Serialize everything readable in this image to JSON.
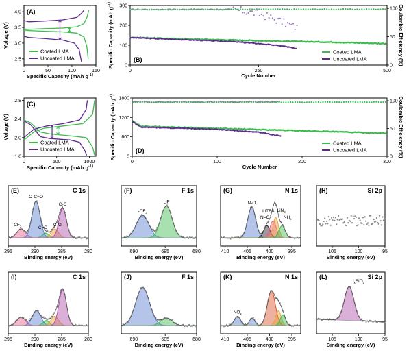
{
  "colors": {
    "coated": "#3dbb4f",
    "uncoated": "#5b2a8c",
    "uncoated_ce": "#9b7bc0",
    "coated_ce": "#8fd49a"
  },
  "chart_data": [
    {
      "id": "A",
      "panel_label": "(A)",
      "type": "line",
      "xlabel": "Specific Capacity (mAh g-1)",
      "ylabel": "Voltage (V)",
      "xlim": [
        0,
        150
      ],
      "ylim": [
        2.3,
        4.2
      ],
      "x_ticks": [
        "0",
        "50",
        "100",
        "150"
      ],
      "y_ticks": [
        "2.5",
        "3.0",
        "3.5",
        "4.0"
      ],
      "legend": [
        "Coated LMA",
        "Uncoated LMA"
      ],
      "series": [
        {
          "name": "Coated LMA",
          "charge": [
            [
              0,
              3.45
            ],
            [
              10,
              3.44
            ],
            [
              40,
              3.46
            ],
            [
              80,
              3.48
            ],
            [
              110,
              3.52
            ],
            [
              125,
              3.62
            ],
            [
              132,
              3.85
            ],
            [
              135,
              4.05
            ]
          ],
          "discharge": [
            [
              0,
              3.42
            ],
            [
              10,
              3.4
            ],
            [
              40,
              3.38
            ],
            [
              80,
              3.36
            ],
            [
              110,
              3.32
            ],
            [
              125,
              3.2
            ],
            [
              131,
              2.9
            ],
            [
              134,
              2.5
            ]
          ]
        },
        {
          "name": "Uncoated LMA",
          "charge": [
            [
              0,
              3.72
            ],
            [
              10,
              3.68
            ],
            [
              40,
              3.7
            ],
            [
              80,
              3.74
            ],
            [
              110,
              3.82
            ],
            [
              120,
              3.95
            ],
            [
              125,
              4.05
            ]
          ],
          "discharge": [
            [
              0,
              3.22
            ],
            [
              10,
              3.18
            ],
            [
              40,
              3.15
            ],
            [
              80,
              3.1
            ],
            [
              105,
              3.0
            ],
            [
              115,
              2.8
            ],
            [
              120,
              2.4
            ]
          ]
        }
      ]
    },
    {
      "id": "B",
      "panel_label": "(B)",
      "type": "scatter",
      "xlabel": "Cycle Number",
      "ylabel": "Specific Capacity (mAh g-1)",
      "y2label": "Coulombic Efficiency (%)",
      "xlim": [
        0,
        500
      ],
      "ylim": [
        0,
        300
      ],
      "y2lim": [
        0,
        105
      ],
      "x_ticks": [
        "0",
        "250",
        "500"
      ],
      "y_ticks": [
        "0",
        "100",
        "200",
        "300"
      ],
      "y2_ticks": [
        "0",
        "50",
        "100"
      ],
      "legend": [
        "Coated LMA",
        "Uncoated LMA"
      ],
      "series": [
        {
          "name": "Coated LMA",
          "capacity": [
            [
              1,
              140
            ],
            [
              100,
              132
            ],
            [
              200,
              126
            ],
            [
              300,
              120
            ],
            [
              400,
              115
            ],
            [
              500,
              108
            ]
          ],
          "ce": [
            [
              1,
              98
            ],
            [
              500,
              98.5
            ]
          ]
        },
        {
          "name": "Uncoated LMA",
          "capacity": [
            [
              1,
              138
            ],
            [
              100,
              128
            ],
            [
              200,
              118
            ],
            [
              250,
              108
            ],
            [
              300,
              95
            ],
            [
              325,
              82
            ]
          ],
          "ce": [
            [
              1,
              98
            ],
            [
              200,
              98
            ],
            [
              230,
              94
            ],
            [
              260,
              88
            ],
            [
              290,
              78
            ],
            [
              325,
              66
            ]
          ]
        }
      ]
    },
    {
      "id": "C",
      "panel_label": "(C)",
      "type": "line",
      "xlabel": "Specific Capacity (mAh g-1)",
      "ylabel": "Voltage (V)",
      "xlim": [
        0,
        1100
      ],
      "ylim": [
        1.6,
        2.85
      ],
      "x_ticks": [
        "0",
        "500",
        "1000"
      ],
      "y_ticks": [
        "1.6",
        "2.0",
        "2.4",
        "2.8"
      ],
      "legend": [
        "Coated LMA",
        "Uncoated LMA"
      ],
      "series": [
        {
          "name": "Coated LMA",
          "charge": [
            [
              0,
              1.95
            ],
            [
              150,
              2.12
            ],
            [
              300,
              2.2
            ],
            [
              600,
              2.25
            ],
            [
              900,
              2.3
            ],
            [
              1050,
              2.5
            ],
            [
              1080,
              2.8
            ]
          ],
          "discharge": [
            [
              0,
              2.38
            ],
            [
              100,
              2.32
            ],
            [
              250,
              2.12
            ],
            [
              400,
              2.08
            ],
            [
              700,
              2.04
            ],
            [
              950,
              2.0
            ],
            [
              1050,
              1.8
            ],
            [
              1080,
              1.62
            ]
          ]
        },
        {
          "name": "Uncoated LMA",
          "charge": [
            [
              0,
              2.0
            ],
            [
              150,
              2.18
            ],
            [
              350,
              2.25
            ],
            [
              600,
              2.3
            ],
            [
              850,
              2.38
            ],
            [
              950,
              2.6
            ],
            [
              970,
              2.8
            ]
          ],
          "discharge": [
            [
              0,
              2.36
            ],
            [
              100,
              2.28
            ],
            [
              250,
              2.02
            ],
            [
              400,
              1.98
            ],
            [
              700,
              1.95
            ],
            [
              850,
              1.9
            ],
            [
              930,
              1.72
            ],
            [
              960,
              1.62
            ]
          ]
        }
      ]
    },
    {
      "id": "D",
      "panel_label": "(D)",
      "type": "scatter",
      "xlabel": "Cycle Number",
      "ylabel": "Specific Capacity (mAh g-1)",
      "y2label": "Coulombic Efficiency (%)",
      "xlim": [
        0,
        300
      ],
      "ylim": [
        0,
        1800
      ],
      "y2lim": [
        0,
        105
      ],
      "x_ticks": [
        "0",
        "100",
        "200",
        "300"
      ],
      "y_ticks": [
        "0",
        "600",
        "1200",
        "1800"
      ],
      "y2_ticks": [
        "0",
        "50",
        "100"
      ],
      "legend": [
        "Coated LMA",
        "Uncoated LMA"
      ],
      "series": [
        {
          "name": "Coated LMA",
          "capacity": [
            [
              1,
              1080
            ],
            [
              10,
              930
            ],
            [
              50,
              900
            ],
            [
              100,
              860
            ],
            [
              200,
              790
            ],
            [
              300,
              710
            ]
          ],
          "ce": [
            [
              1,
              97
            ],
            [
              300,
              97.5
            ]
          ]
        },
        {
          "name": "Uncoated LMA",
          "capacity": [
            [
              1,
              1060
            ],
            [
              10,
              900
            ],
            [
              50,
              870
            ],
            [
              100,
              830
            ],
            [
              150,
              740
            ],
            [
              175,
              620
            ]
          ],
          "ce": [
            [
              1,
              98
            ],
            [
              175,
              98
            ]
          ]
        }
      ]
    },
    {
      "id": "E",
      "panel_label": "(E)",
      "type": "xps",
      "element": "C 1s",
      "xlabel": "Binding energy (eV)",
      "xlim": [
        295,
        280
      ],
      "x_ticks": [
        "295",
        "290",
        "285",
        "280"
      ],
      "peaks": [
        {
          "label": "-CF3",
          "center": 292.6,
          "height": 0.22,
          "width": 0.8,
          "color": "#e8608a"
        },
        {
          "label": "C=O",
          "center": 288.0,
          "height": 0.12,
          "width": 0.6,
          "color": "#3dbb4f"
        },
        {
          "label": "C-O",
          "center": 286.3,
          "height": 0.22,
          "width": 0.7,
          "color": "#e6a23c"
        },
        {
          "label": "O-C=O",
          "center": 289.8,
          "height": 0.9,
          "width": 0.75,
          "color": "#5b7fd0"
        },
        {
          "label": "C-C",
          "center": 284.8,
          "height": 0.72,
          "width": 0.7,
          "color": "#b04fa8"
        }
      ]
    },
    {
      "id": "F",
      "panel_label": "(F)",
      "type": "xps",
      "element": "F 1s",
      "xlabel": "Binding energy (eV)",
      "xlim": [
        692,
        680
      ],
      "x_ticks": [
        "690",
        "685",
        "680"
      ],
      "peaks": [
        {
          "label": "-CF3",
          "center": 688.6,
          "height": 0.55,
          "width": 1.0,
          "color": "#5b7fd0"
        },
        {
          "label": "LiF",
          "center": 684.8,
          "height": 0.78,
          "width": 0.9,
          "color": "#3dbb4f"
        }
      ]
    },
    {
      "id": "G",
      "panel_label": "(G)",
      "type": "xps",
      "element": "N 1s",
      "xlabel": "Binding energy (eV)",
      "xlim": [
        411,
        393
      ],
      "x_ticks": [
        "410",
        "405",
        "400",
        "395"
      ],
      "peaks": [
        {
          "label": "N-O",
          "center": 404.0,
          "height": 0.75,
          "width": 0.9,
          "color": "#5b7fd0"
        },
        {
          "label": "N=C",
          "center": 400.6,
          "height": 0.3,
          "width": 0.7,
          "color": "#222222"
        },
        {
          "label": "LiTFSI",
          "center": 399.2,
          "height": 0.42,
          "width": 0.7,
          "color": "#e8608a"
        },
        {
          "label": "LiN3",
          "center": 398.6,
          "height": 0.5,
          "width": 0.6,
          "color": "#e6a23c"
        },
        {
          "label": "NHx",
          "center": 397.2,
          "height": 0.3,
          "width": 0.7,
          "color": "#3dbb4f"
        }
      ]
    },
    {
      "id": "H",
      "panel_label": "(H)",
      "type": "xps",
      "element": "Si 2p",
      "xlabel": "Binding energy (eV)",
      "xlim": [
        108,
        95
      ],
      "x_ticks": [
        "105",
        "100",
        "95"
      ],
      "peaks": []
    },
    {
      "id": "I",
      "panel_label": "(I)",
      "type": "xps",
      "element": "C 1s",
      "xlabel": "Binding energy (eV)",
      "xlim": [
        295,
        280
      ],
      "x_ticks": [
        "295",
        "290",
        "285",
        "280"
      ],
      "peaks": [
        {
          "label": "",
          "center": 292.6,
          "height": 0.2,
          "width": 0.8,
          "color": "#e8608a"
        },
        {
          "label": "",
          "center": 289.7,
          "height": 0.35,
          "width": 0.8,
          "color": "#5b7fd0"
        },
        {
          "label": "",
          "center": 287.9,
          "height": 0.12,
          "width": 0.6,
          "color": "#3dbb4f"
        },
        {
          "label": "",
          "center": 286.3,
          "height": 0.22,
          "width": 0.7,
          "color": "#e6a23c"
        },
        {
          "label": "",
          "center": 284.8,
          "height": 0.85,
          "width": 0.7,
          "color": "#b04fa8"
        }
      ]
    },
    {
      "id": "J",
      "panel_label": "(J)",
      "type": "xps",
      "element": "F 1s",
      "xlabel": "Binding energy (eV)",
      "xlim": [
        692,
        680
      ],
      "x_ticks": [
        "690",
        "685",
        "680"
      ],
      "peaks": [
        {
          "label": "",
          "center": 688.6,
          "height": 0.9,
          "width": 1.1,
          "color": "#5b7fd0"
        },
        {
          "label": "",
          "center": 684.8,
          "height": 0.18,
          "width": 0.9,
          "color": "#3dbb4f"
        }
      ]
    },
    {
      "id": "K",
      "panel_label": "(K)",
      "type": "xps",
      "element": "N 1s",
      "xlabel": "Binding energy (eV)",
      "xlim": [
        411,
        393
      ],
      "x_ticks": [
        "410",
        "405",
        "400",
        "395"
      ],
      "peaks": [
        {
          "label": "NOx",
          "center": 407.2,
          "height": 0.22,
          "width": 0.7,
          "color": "#5b7fd0"
        },
        {
          "label": "",
          "center": 403.9,
          "height": 0.18,
          "width": 0.6,
          "color": "#5b7fd0"
        },
        {
          "label": "",
          "center": 399.6,
          "height": 0.82,
          "width": 0.9,
          "color": "#d9532b"
        },
        {
          "label": "",
          "center": 398.0,
          "height": 0.35,
          "width": 0.6,
          "color": "#e6a23c"
        },
        {
          "label": "",
          "center": 397.0,
          "height": 0.25,
          "width": 0.6,
          "color": "#3dbb4f"
        }
      ]
    },
    {
      "id": "L",
      "panel_label": "(L)",
      "type": "xps",
      "element": "Si 2p",
      "xlabel": "Binding energy (eV)",
      "xlim": [
        108,
        95
      ],
      "x_ticks": [
        "105",
        "100",
        "95"
      ],
      "peaks": [
        {
          "label": "LixSiOy",
          "center": 101.8,
          "height": 0.8,
          "width": 0.9,
          "color": "#b04fa8"
        }
      ]
    }
  ]
}
